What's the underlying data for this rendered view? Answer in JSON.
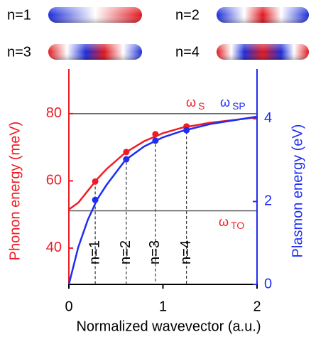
{
  "modes": [
    "n=1",
    "n=2",
    "n=3",
    "n=4"
  ],
  "chart_data": {
    "type": "line",
    "xlabel": "Normalized wavevector (a.u.)",
    "ylabel": "Phonon energy (meV)",
    "y2label": "Plasmon energy (eV)",
    "xlim": [
      0,
      2
    ],
    "xticks": [
      0,
      1,
      2
    ],
    "ylim": [
      29.2,
      93.3
    ],
    "yticks": [
      40,
      60,
      80
    ],
    "y2lim": [
      0,
      5.2
    ],
    "y2ticks": [
      0,
      2,
      4
    ],
    "x": [
      0,
      0.1,
      0.2,
      0.3,
      0.4,
      0.6,
      0.8,
      1.0,
      1.2,
      1.5,
      2.0
    ],
    "series": [
      {
        "color": "#ee1c25",
        "axis": "y",
        "values": [
          51.5,
          53.5,
          57,
          60.5,
          63.5,
          68.4,
          71.8,
          74.2,
          75.8,
          77.3,
          78.9
        ]
      },
      {
        "color": "#1f2ef0",
        "axis": "y2",
        "values": [
          0,
          0.9,
          1.55,
          2.05,
          2.4,
          3.0,
          3.33,
          3.55,
          3.7,
          3.87,
          4.05
        ]
      }
    ],
    "markers": {
      "x": [
        0.28,
        0.61,
        0.92,
        1.25
      ],
      "phonon": [
        59.8,
        68.6,
        73.9,
        76.2
      ],
      "plasmon": [
        2.04,
        3.02,
        3.47,
        3.72
      ]
    },
    "hlines": [
      80,
      51.1
    ],
    "annotations": [
      {
        "symbol": "ω",
        "sub": "S",
        "color": "#ee1c25"
      },
      {
        "symbol": "ω",
        "sub": "SP",
        "color": "#1f2ef0"
      },
      {
        "symbol": "ω",
        "sub": "TO",
        "color": "#ee1c25"
      }
    ]
  }
}
